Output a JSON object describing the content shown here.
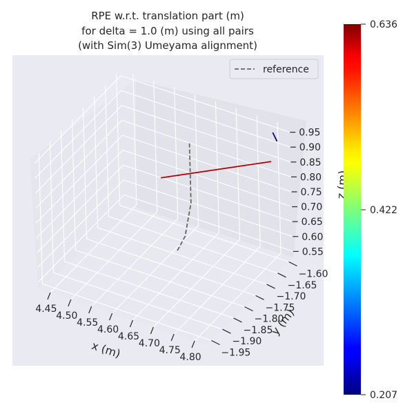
{
  "chart_data": [
    {
      "type": "line",
      "projection": "3d",
      "title_lines": [
        "RPE w.r.t. translation part (m)",
        "for delta = 1.0 (m) using all pairs",
        "(with Sim(3) Umeyama alignment)"
      ],
      "xlabel": "x (m)",
      "ylabel": "y (m)",
      "zlabel": "z (m)",
      "x_ticks": [
        "4.45",
        "4.50",
        "4.55",
        "4.60",
        "4.65",
        "4.70",
        "4.75",
        "4.80"
      ],
      "y_ticks": [
        "−1.95",
        "−1.90",
        "−1.85",
        "−1.80",
        "−1.75",
        "−1.70",
        "−1.65",
        "−1.60"
      ],
      "z_ticks": [
        "0.55",
        "0.60",
        "0.65",
        "0.70",
        "0.75",
        "0.80",
        "0.85",
        "0.90",
        "0.95"
      ],
      "xlim": [
        4.42,
        4.83
      ],
      "ylim": [
        -1.97,
        -1.58
      ],
      "zlim": [
        0.53,
        0.97
      ],
      "grid": true,
      "background": "#eaeaf2",
      "legend": {
        "position": "top-right",
        "entries": [
          {
            "label": "reference",
            "style": "dashed",
            "color": "#666666"
          }
        ]
      },
      "series": [
        {
          "name": "reference",
          "style": "dashed",
          "color": "#666666",
          "points": [
            {
              "x": 4.65,
              "y": -1.7,
              "z": 0.92
            },
            {
              "x": 4.65,
              "y": -1.7,
              "z": 0.72
            },
            {
              "x": 4.65,
              "y": -1.73,
              "z": 0.63
            },
            {
              "x": 4.64,
              "y": -1.75,
              "z": 0.59
            }
          ]
        },
        {
          "style": "solid",
          "color": "#b00000",
          "points": [
            {
              "x": 4.55,
              "y": -1.65,
              "z": 0.72
            },
            {
              "x": 4.81,
              "y": -1.63,
              "z": 0.88
            }
          ]
        },
        {
          "style": "solid",
          "color": "#0a0a80",
          "points": [
            {
              "x": 4.81,
              "y": -1.62,
              "z": 0.97
            },
            {
              "x": 4.82,
              "y": -1.62,
              "z": 0.945
            }
          ]
        }
      ]
    },
    {
      "type": "colorbar",
      "colormap": "jet",
      "min_label": "0.207",
      "mid_label": "0.422",
      "max_label": "0.636",
      "min": 0.207,
      "mid": 0.422,
      "max": 0.636
    }
  ]
}
